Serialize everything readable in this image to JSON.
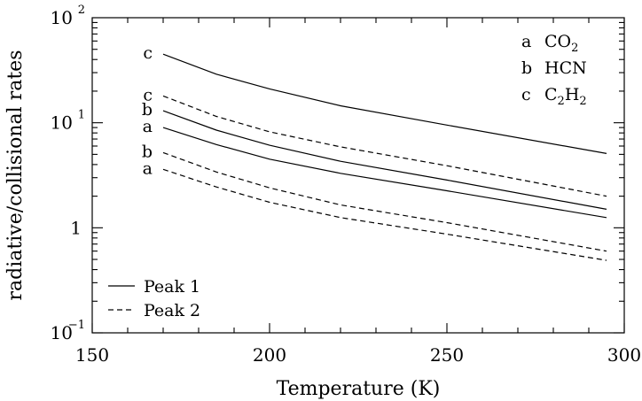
{
  "chart_data": {
    "type": "line",
    "xlabel": "Temperature (K)",
    "ylabel": "radiative/collisional rates",
    "xlim": [
      150,
      300
    ],
    "ylim": [
      0.1,
      100
    ],
    "yscale": "log",
    "x_ticks": [
      {
        "value": 150,
        "label": "150"
      },
      {
        "value": 200,
        "label": "200"
      },
      {
        "value": 250,
        "label": "250"
      },
      {
        "value": 300,
        "label": "300"
      }
    ],
    "y_ticks": [
      {
        "value": 0.1,
        "base": "10",
        "exp": "−1"
      },
      {
        "value": 1,
        "base": "1",
        "exp": ""
      },
      {
        "value": 10,
        "base": "10",
        "exp": "1"
      },
      {
        "value": 100,
        "base": "10",
        "exp": "2"
      }
    ],
    "line_style_legend": [
      {
        "label": "Peak 1",
        "style": "solid"
      },
      {
        "label": "Peak 2",
        "style": "dashed"
      }
    ],
    "species_legend": [
      {
        "key": "a",
        "base": "CO",
        "sub": "2",
        "rest": "",
        "sub2": ""
      },
      {
        "key": "b",
        "base": "HCN",
        "sub": "",
        "rest": "",
        "sub2": ""
      },
      {
        "key": "c",
        "base": "C",
        "sub": "2",
        "rest": "H",
        "sub2": "2"
      }
    ],
    "series": [
      {
        "label": "c",
        "style": "solid",
        "x": [
          170,
          185,
          200,
          220,
          250,
          295
        ],
        "y": [
          45,
          29,
          21,
          14.5,
          9.5,
          5.1
        ]
      },
      {
        "label": "c",
        "style": "dashed",
        "x": [
          170,
          185,
          200,
          220,
          250,
          295
        ],
        "y": [
          18,
          11.5,
          8.2,
          5.9,
          3.9,
          2.0
        ]
      },
      {
        "label": "b",
        "style": "solid",
        "x": [
          170,
          185,
          200,
          220,
          250,
          295
        ],
        "y": [
          13,
          8.5,
          6.1,
          4.3,
          2.85,
          1.5
        ]
      },
      {
        "label": "a",
        "style": "solid",
        "x": [
          170,
          185,
          200,
          220,
          250,
          295
        ],
        "y": [
          9.0,
          6.2,
          4.5,
          3.3,
          2.25,
          1.25
        ]
      },
      {
        "label": "b",
        "style": "dashed",
        "x": [
          170,
          185,
          200,
          220,
          250,
          295
        ],
        "y": [
          5.2,
          3.4,
          2.4,
          1.65,
          1.12,
          0.6
        ]
      },
      {
        "label": "a",
        "style": "dashed",
        "x": [
          170,
          185,
          200,
          220,
          250,
          295
        ],
        "y": [
          3.6,
          2.45,
          1.75,
          1.25,
          0.87,
          0.49
        ]
      }
    ]
  }
}
